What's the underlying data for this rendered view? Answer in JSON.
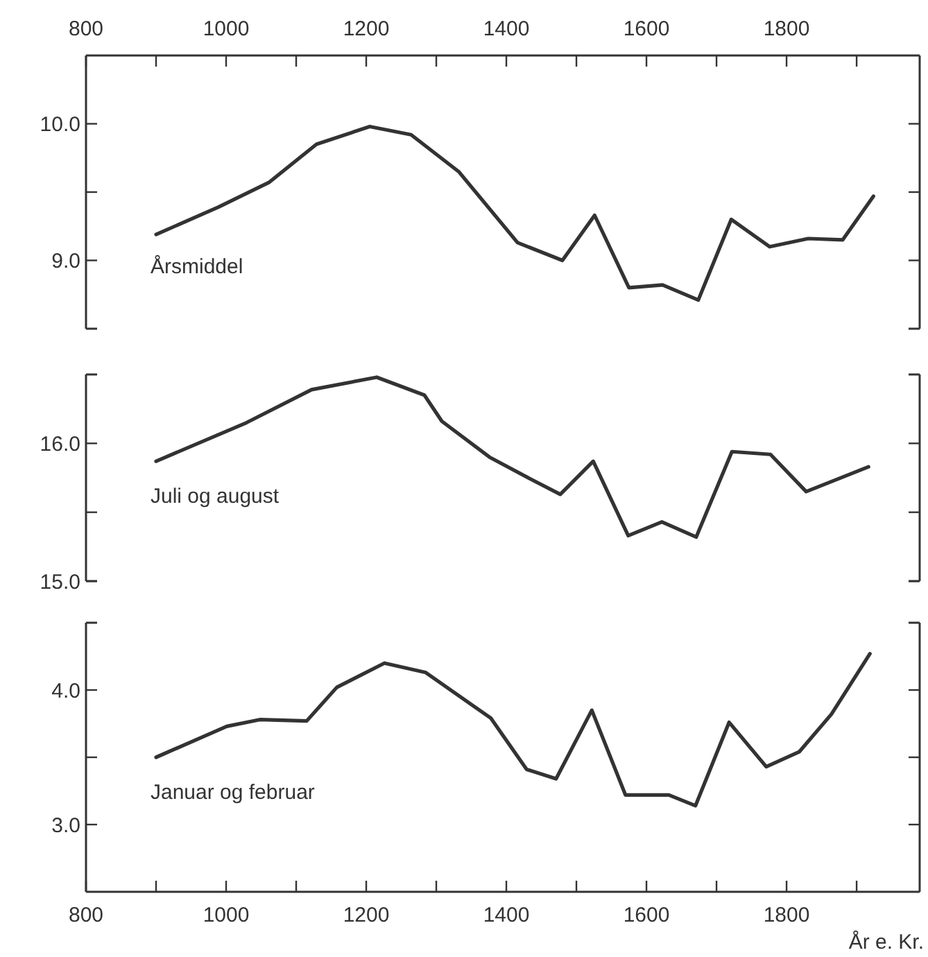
{
  "chart_data": [
    {
      "type": "line",
      "xlim": [
        800,
        1990
      ],
      "x2lim": [
        800,
        1990
      ],
      "x2ticks": [
        800,
        {
          "value": 900,
          "label": null
        },
        1000,
        {
          "value": 1100,
          "label": null
        },
        1200,
        {
          "value": 1300,
          "label": null
        },
        1400,
        {
          "value": 1500,
          "label": null
        },
        1600,
        {
          "value": 1700,
          "label": null
        },
        1800,
        {
          "value": 1900,
          "label": null
        }
      ],
      "ylim": [
        8.5,
        10.5
      ],
      "yticks": [
        {
          "value": 9,
          "label": "9.0"
        },
        {
          "value": 9.5,
          "label": null
        },
        {
          "value": 10,
          "label": "10.0"
        }
      ],
      "grid": false,
      "legend": false,
      "series": [
        {
          "name": "Årsmiddel",
          "color": "#333333",
          "x": [
            900,
            989,
            1061,
            1129,
            1205,
            1264,
            1332,
            1416,
            1480,
            1526,
            1575,
            1623,
            1674,
            1721,
            1776,
            1831,
            1880,
            1924
          ],
          "values": [
            9.19,
            9.39,
            9.57,
            9.85,
            9.98,
            9.92,
            9.65,
            9.13,
            9.0,
            9.33,
            8.8,
            8.82,
            8.71,
            9.3,
            9.1,
            9.16,
            9.15,
            9.47
          ]
        }
      ]
    },
    {
      "type": "line",
      "xlim": [
        800,
        1990
      ],
      "tick_labels": "y",
      "ylim": [
        15.0,
        16.5
      ],
      "yticks": [
        {
          "value": 15,
          "label": "15.0"
        },
        {
          "value": 15.5,
          "label": null
        },
        {
          "value": 16,
          "label": "16.0"
        }
      ],
      "grid": false,
      "legend": false,
      "series": [
        {
          "name": "Juli og august",
          "color": "#333333",
          "x": [
            900,
            1029,
            1122,
            1215,
            1283,
            1308,
            1376,
            1435,
            1477,
            1524,
            1574,
            1622,
            1671,
            1722,
            1777,
            1828,
            1917
          ],
          "values": [
            15.87,
            16.15,
            16.39,
            16.48,
            16.35,
            16.16,
            15.9,
            15.74,
            15.63,
            15.87,
            15.33,
            15.43,
            15.32,
            15.94,
            15.92,
            15.65,
            15.83
          ]
        }
      ]
    },
    {
      "type": "line",
      "xlim": [
        800,
        1990
      ],
      "xticks": [
        800,
        {
          "value": 900,
          "label": null
        },
        1000,
        {
          "value": 1100,
          "label": null
        },
        1200,
        {
          "value": 1300,
          "label": null
        },
        1400,
        {
          "value": 1500,
          "label": null
        },
        1600,
        {
          "value": 1700,
          "label": null
        },
        1800,
        {
          "value": 1900,
          "label": null
        }
      ],
      "xlabel": "År e. Kr.",
      "ylim": [
        2.5,
        4.5
      ],
      "yticks": [
        {
          "value": 3,
          "label": "3.0"
        },
        {
          "value": 3.5,
          "label": null
        },
        {
          "value": 4,
          "label": "4.0"
        }
      ],
      "grid": false,
      "legend": false,
      "series": [
        {
          "name": "Januar og februar",
          "color": "#333333",
          "x": [
            900,
            1001,
            1048,
            1115,
            1158,
            1226,
            1285,
            1378,
            1429,
            1471,
            1522,
            1570,
            1632,
            1670,
            1718,
            1771,
            1818,
            1864,
            1919
          ],
          "values": [
            3.5,
            3.73,
            3.78,
            3.77,
            4.02,
            4.2,
            4.13,
            3.79,
            3.41,
            3.34,
            3.85,
            3.22,
            3.22,
            3.14,
            3.76,
            3.43,
            3.54,
            3.82,
            4.27
          ]
        }
      ]
    }
  ]
}
